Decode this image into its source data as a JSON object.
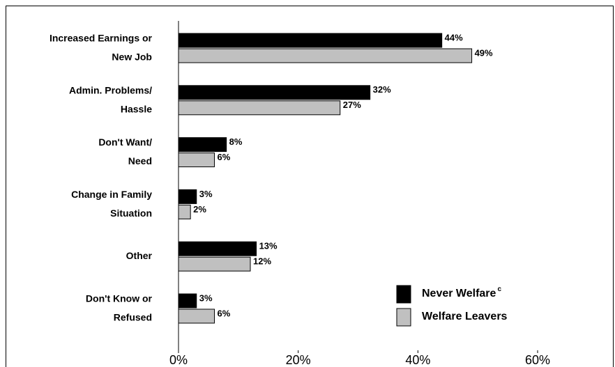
{
  "chart_data": {
    "type": "hbar",
    "categories": [
      "Increased Earnings or\nNew Job",
      "Admin. Problems/\nHassle",
      "Don't Want/\nNeed",
      "Change in Family\nSituation",
      "Other",
      "Don't Know or\nRefused"
    ],
    "series": [
      {
        "name": "Never Welfare",
        "note": "c",
        "color": "#000000",
        "values": [
          44,
          32,
          8,
          3,
          13,
          3
        ],
        "value_labels": [
          "44%",
          "32%",
          "8%",
          "3%",
          "13%",
          "3%"
        ]
      },
      {
        "name": "Welfare Leavers",
        "color": "#c0c0c0",
        "values": [
          49,
          27,
          6,
          2,
          12,
          6
        ],
        "value_labels": [
          "49%",
          "27%",
          "6%",
          "2%",
          "12%",
          "6%"
        ]
      }
    ],
    "xlim": [
      0,
      60
    ],
    "xticks": [
      {
        "value": 0,
        "label": "0%"
      },
      {
        "value": 20,
        "label": "20%"
      },
      {
        "value": 40,
        "label": "40%"
      },
      {
        "value": 60,
        "label": "60%"
      }
    ],
    "legend": "lower-right",
    "grid": false
  }
}
